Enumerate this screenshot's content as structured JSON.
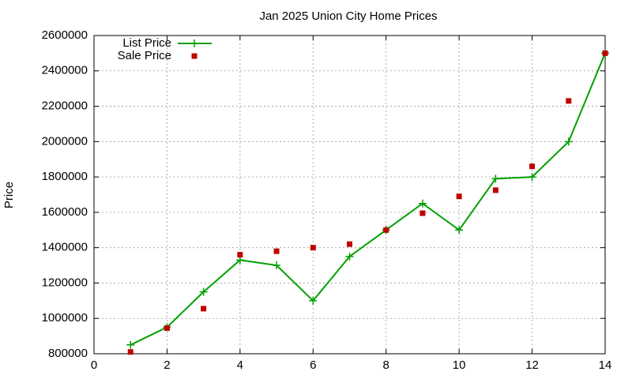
{
  "chart_data": {
    "type": "line",
    "title": "Jan 2025 Union City Home Prices",
    "y_label": "Price",
    "x": [
      1,
      2,
      3,
      4,
      5,
      6,
      7,
      8,
      9,
      10,
      11,
      12,
      13,
      14
    ],
    "series": [
      {
        "name": "List Price",
        "color": "#00a000",
        "style": "linespoints",
        "values": [
          850000,
          950000,
          1150000,
          1330000,
          1300000,
          1100000,
          1350000,
          1500000,
          1650000,
          1500000,
          1790000,
          1800000,
          2000000,
          2500000
        ]
      },
      {
        "name": "Sale Price",
        "color": "#c00000",
        "style": "points",
        "values": [
          810000,
          945000,
          1055000,
          1360000,
          1380000,
          1400000,
          1420000,
          1500000,
          1595000,
          1690000,
          1725000,
          1860000,
          2230000,
          2500000
        ]
      }
    ],
    "xlim": [
      0,
      14
    ],
    "xticks": [
      0,
      2,
      4,
      6,
      8,
      10,
      12,
      14
    ],
    "ylim": [
      800000,
      2600000
    ],
    "yticks": [
      800000,
      1000000,
      1200000,
      1400000,
      1600000,
      1800000,
      2000000,
      2200000,
      2400000,
      2600000
    ],
    "grid": true,
    "legend": "top-left"
  }
}
